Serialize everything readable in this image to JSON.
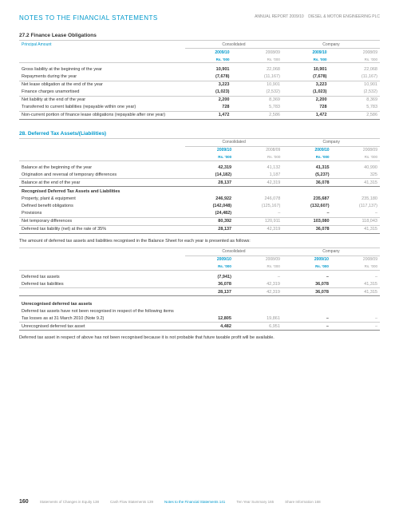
{
  "header": {
    "title": "NOTES TO THE FINANCIAL STATEMENTS",
    "right1": "ANNUAL REPORT 2009/10",
    "right2": "DIESEL & MOTOR ENGINEERING PLC"
  },
  "section272": {
    "title": "27.2  Finance Lease Obligations",
    "principal": "Principal Amount",
    "groups": {
      "g1": "Consolidated",
      "g2": "Company"
    },
    "years": {
      "cur": "2009/10",
      "pri": "2008/09"
    },
    "units": {
      "cur": "Rs. '000",
      "pri": "Rs. '000"
    },
    "rows": [
      {
        "label": "Gross liability at the beginning of the year",
        "cc": "10,901",
        "cp": "22,068",
        "oc": "10,901",
        "op": "22,068"
      },
      {
        "label": "Repayments during the year",
        "cc": "(7,678)",
        "cp": "(11,167)",
        "oc": "(7,678)",
        "op": "(11,167)"
      },
      {
        "label": "Net lease obligation at the end of the year",
        "cc": "3,223",
        "cp": "10,901",
        "oc": "3,223",
        "op": "10,901"
      },
      {
        "label": "Finance charges unamortised",
        "cc": "(1,023)",
        "cp": "(2,532)",
        "oc": "(1,023)",
        "op": "(2,532)"
      },
      {
        "label": "Net liability at the end of the year",
        "cc": "2,200",
        "cp": "8,369",
        "oc": "2,200",
        "op": "8,369"
      },
      {
        "label": "Transferred to current liabilities (repayable within one year)",
        "cc": "728",
        "cp": "5,783",
        "oc": "728",
        "op": "5,783"
      },
      {
        "label": "Non-current portion of finance lease obligations (repayable after one year)",
        "cc": "1,472",
        "cp": "2,586",
        "oc": "1,472",
        "op": "2,586"
      }
    ]
  },
  "section28": {
    "title": "28.  Deferred Tax Assets/(Liabilities)",
    "groups": {
      "g1": "Consolidated",
      "g2": "Company"
    },
    "years": {
      "cur": "2009/10",
      "pri": "2008/09"
    },
    "units": {
      "cur": "Rs. '000",
      "pri": "Rs. '000"
    },
    "rows1": [
      {
        "label": "Balance  at the beginning of the year",
        "cc": "42,319",
        "cp": "41,132",
        "oc": "41,315",
        "op": "40,990"
      },
      {
        "label": "Origination and reversal of temporary differences",
        "cc": "(14,182)",
        "cp": "1,187",
        "oc": "(5,237)",
        "op": "325"
      },
      {
        "label": "Balance at the end of the year",
        "cc": "28,137",
        "cp": "42,319",
        "oc": "36,078",
        "op": "41,315"
      }
    ],
    "subhead": "Recognised Deferred Tax Assets and Liabilities",
    "rows2": [
      {
        "label": "Property, plant & equipment",
        "cc": "246,922",
        "cp": "246,078",
        "oc": "235,687",
        "op": "235,180"
      },
      {
        "label": "Defined benefit obligations",
        "cc": "(142,048)",
        "cp": "(125,167)",
        "oc": "(132,607)",
        "op": "(117,137)"
      },
      {
        "label": "Provisions",
        "cc": "(24,482)",
        "cp": "–",
        "oc": "–",
        "op": "–"
      },
      {
        "label": "Net temporary differences",
        "cc": "80,392",
        "cp": "120,911",
        "oc": "103,080",
        "op": "118,043"
      },
      {
        "label": "Deferred tax liability (net) at the rate of 35%",
        "cc": "28,137",
        "cp": "42,319",
        "oc": "36,078",
        "op": "41,315"
      }
    ]
  },
  "midtext": "The amount of deferred tax assets and liabilities recognised in the Balance Sheet for each year is presented as follows:",
  "section28b": {
    "groups": {
      "g1": "Consolidated",
      "g2": "Company"
    },
    "years": {
      "cur": "2009/10",
      "pri": "2008/09"
    },
    "units": {
      "cur": "Rs. '000",
      "pri": "Rs. '000"
    },
    "rows1": [
      {
        "label": "Deferred tax assets",
        "cc": "(7,941)",
        "cp": "–",
        "oc": "–",
        "op": "–"
      },
      {
        "label": "Deferred tax liabilities",
        "cc": "36,078",
        "cp": "42,319",
        "oc": "36,078",
        "op": "41,315"
      },
      {
        "label": "",
        "cc": "28,137",
        "cp": "42,319",
        "oc": "36,078",
        "op": "41,315"
      }
    ],
    "subhead": "Unrecognised deferred tax assets",
    "note": "Deferred tax assets have not been recognised in respect of the following items",
    "rows2": [
      {
        "label": "Tax losses as at 31 March 2010 (Note 9.2)",
        "cc": "12,805",
        "cp": "19,861",
        "oc": "–",
        "op": "–"
      },
      {
        "label": "Unrecognised deferred tax asset",
        "cc": "4,482",
        "cp": "6,951",
        "oc": "–",
        "op": "–"
      }
    ]
  },
  "tailtext": "Deferred tax asset in respect of above has not been recognised because it is not probable that future taxable profit will be available.",
  "footer": {
    "pageno": "160",
    "items": [
      "Statements of Changes in Equity  138",
      "Cash Flow Statements  139",
      "Notes to the Financial Statements  141",
      "Ten Year Summary  165",
      "Share Information  168"
    ]
  }
}
